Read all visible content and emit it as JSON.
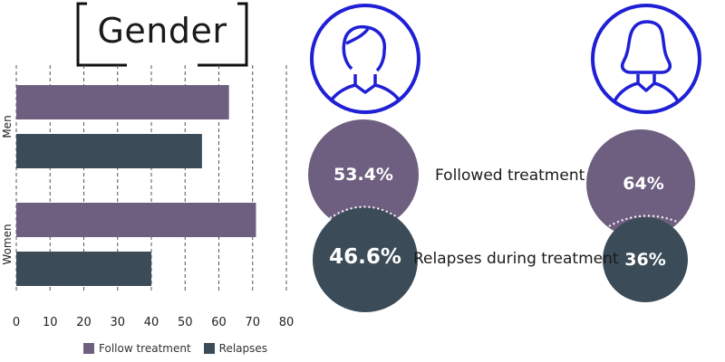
{
  "title": "Gender",
  "colors": {
    "follow": "#6e5f80",
    "relapse": "#3b4b57",
    "icon": "#1f1fd6"
  },
  "chart_data": {
    "type": "bar",
    "orientation": "horizontal",
    "categories": [
      "Men",
      "Women"
    ],
    "series": [
      {
        "name": "Follow treatment",
        "values": [
          63,
          71
        ]
      },
      {
        "name": "Relapses",
        "values": [
          55,
          40
        ]
      }
    ],
    "xlim": [
      0,
      80
    ],
    "xticks": [
      "0",
      "10",
      "20",
      "30",
      "40",
      "50",
      "60",
      "70",
      "80"
    ],
    "grid": true,
    "legend": "bottom"
  },
  "comparison": {
    "men": {
      "followed": "53.4%",
      "relapses": "46.6%",
      "icon": "male-avatar-icon"
    },
    "women": {
      "followed": "64%",
      "relapses": "36%",
      "icon": "female-avatar-icon"
    },
    "followed_label": "Followed treatment",
    "relapses_label": "Relapses during treatment"
  }
}
